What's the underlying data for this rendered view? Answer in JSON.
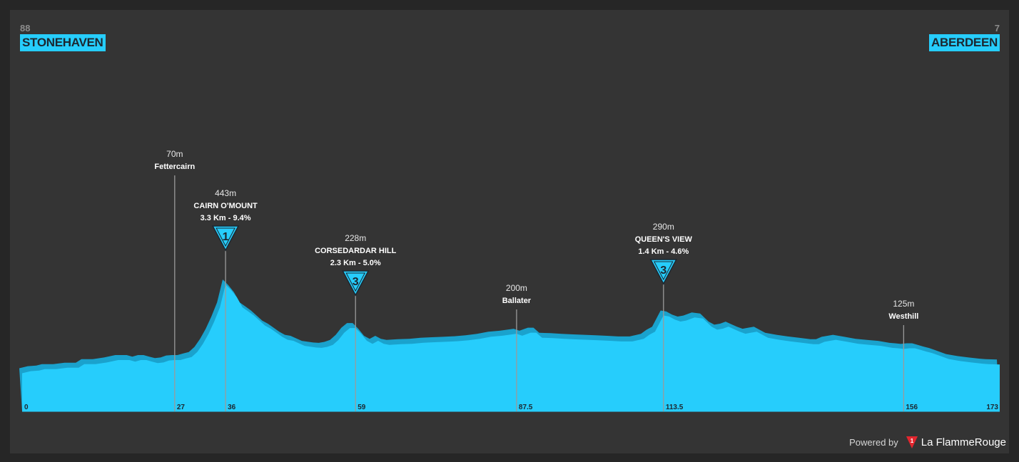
{
  "header": {
    "start_number": "88",
    "start_city": "STONEHAVEN",
    "finish_number": "7",
    "finish_city": "ABERDEEN"
  },
  "footer": {
    "powered_by": "Powered by",
    "brand": "La FlammeRouge"
  },
  "colors": {
    "background": "#343434",
    "profile_fill": "#26cdfc",
    "profile_shade": "#1aa2cd",
    "marker_line": "#9a9a9a",
    "badge_fill": "#26cdfc",
    "badge_stroke": "#1c2730"
  },
  "chart_data": {
    "type": "area",
    "title": "",
    "xlabel": "",
    "ylabel": "",
    "x_unit": "km",
    "y_unit": "m",
    "xlim": [
      0,
      173
    ],
    "ylim": [
      0,
      443
    ],
    "profile": [
      [
        0,
        5
      ],
      [
        1.5,
        15
      ],
      [
        3,
        18
      ],
      [
        4,
        25
      ],
      [
        6,
        25
      ],
      [
        8,
        32
      ],
      [
        10,
        32
      ],
      [
        11,
        50
      ],
      [
        13,
        50
      ],
      [
        15,
        58
      ],
      [
        17,
        70
      ],
      [
        19,
        70
      ],
      [
        20,
        62
      ],
      [
        21,
        70
      ],
      [
        22,
        70
      ],
      [
        23,
        62
      ],
      [
        24,
        55
      ],
      [
        25,
        58
      ],
      [
        26,
        68
      ],
      [
        27,
        70
      ],
      [
        28,
        70
      ],
      [
        29,
        78
      ],
      [
        30,
        85
      ],
      [
        31,
        110
      ],
      [
        32,
        150
      ],
      [
        33,
        200
      ],
      [
        34,
        260
      ],
      [
        35,
        330
      ],
      [
        36,
        443
      ],
      [
        37,
        415
      ],
      [
        38,
        380
      ],
      [
        39,
        330
      ],
      [
        40,
        310
      ],
      [
        41,
        290
      ],
      [
        42,
        265
      ],
      [
        43,
        240
      ],
      [
        44,
        225
      ],
      [
        45,
        205
      ],
      [
        46,
        185
      ],
      [
        47,
        170
      ],
      [
        48,
        165
      ],
      [
        50,
        140
      ],
      [
        52,
        132
      ],
      [
        53,
        130
      ],
      [
        54,
        135
      ],
      [
        55,
        145
      ],
      [
        56,
        170
      ],
      [
        57,
        205
      ],
      [
        58,
        228
      ],
      [
        59,
        228
      ],
      [
        60,
        200
      ],
      [
        61,
        165
      ],
      [
        62,
        150
      ],
      [
        63,
        165
      ],
      [
        64,
        150
      ],
      [
        65,
        145
      ],
      [
        67,
        148
      ],
      [
        69,
        150
      ],
      [
        71,
        155
      ],
      [
        73,
        158
      ],
      [
        75,
        160
      ],
      [
        77,
        163
      ],
      [
        79,
        168
      ],
      [
        81,
        175
      ],
      [
        83,
        185
      ],
      [
        85,
        190
      ],
      [
        87.5,
        200
      ],
      [
        88.5,
        190
      ],
      [
        90,
        205
      ],
      [
        91,
        205
      ],
      [
        92,
        180
      ],
      [
        94,
        178
      ],
      [
        96,
        175
      ],
      [
        98,
        172
      ],
      [
        100,
        170
      ],
      [
        102,
        168
      ],
      [
        104,
        165
      ],
      [
        106,
        162
      ],
      [
        108,
        162
      ],
      [
        110,
        175
      ],
      [
        111,
        195
      ],
      [
        112,
        210
      ],
      [
        113.5,
        290
      ],
      [
        114.5,
        285
      ],
      [
        115.5,
        270
      ],
      [
        116.5,
        260
      ],
      [
        117.5,
        265
      ],
      [
        119,
        280
      ],
      [
        120.5,
        275
      ],
      [
        122,
        235
      ],
      [
        123,
        220
      ],
      [
        124,
        225
      ],
      [
        125,
        235
      ],
      [
        126,
        222
      ],
      [
        127,
        210
      ],
      [
        128,
        200
      ],
      [
        129,
        205
      ],
      [
        130,
        210
      ],
      [
        131,
        195
      ],
      [
        132,
        180
      ],
      [
        134,
        170
      ],
      [
        136,
        162
      ],
      [
        138,
        155
      ],
      [
        140,
        148
      ],
      [
        141,
        148
      ],
      [
        142,
        160
      ],
      [
        144,
        170
      ],
      [
        146,
        160
      ],
      [
        148,
        150
      ],
      [
        150,
        145
      ],
      [
        152,
        140
      ],
      [
        154,
        130
      ],
      [
        155,
        128
      ],
      [
        156,
        125
      ],
      [
        157,
        128
      ],
      [
        158,
        128
      ],
      [
        159,
        120
      ],
      [
        160,
        112
      ],
      [
        161,
        105
      ],
      [
        162,
        95
      ],
      [
        163,
        85
      ],
      [
        164,
        75
      ],
      [
        166,
        65
      ],
      [
        168,
        58
      ],
      [
        170,
        52
      ],
      [
        171,
        50
      ],
      [
        173,
        48
      ]
    ],
    "km_labels": [
      "0",
      "27",
      "36",
      "59",
      "87.5",
      "113.5",
      "156",
      "173"
    ],
    "points": [
      {
        "km": 27,
        "label": "27",
        "elev": 70,
        "elev_label": "70m",
        "name": "Fettercairn",
        "climb": ""
      },
      {
        "km": 36,
        "label": "36",
        "elev": 443,
        "elev_label": "443m",
        "name": "CAIRN O'MOUNT",
        "climb": "3.3 Km - 9.4%",
        "category": "1"
      },
      {
        "km": 59,
        "label": "59",
        "elev": 228,
        "elev_label": "228m",
        "name": "CORSEDARDAR HILL",
        "climb": "2.3 Km - 5.0%",
        "category": "3"
      },
      {
        "km": 87.5,
        "label": "87.5",
        "elev": 200,
        "elev_label": "200m",
        "name": "Ballater",
        "climb": ""
      },
      {
        "km": 113.5,
        "label": "113.5",
        "elev": 290,
        "elev_label": "290m",
        "name": "QUEEN'S VIEW",
        "climb": "1.4 Km - 4.6%",
        "category": "3"
      },
      {
        "km": 156,
        "label": "156",
        "elev": 125,
        "elev_label": "125m",
        "name": "Westhill",
        "climb": ""
      }
    ]
  }
}
